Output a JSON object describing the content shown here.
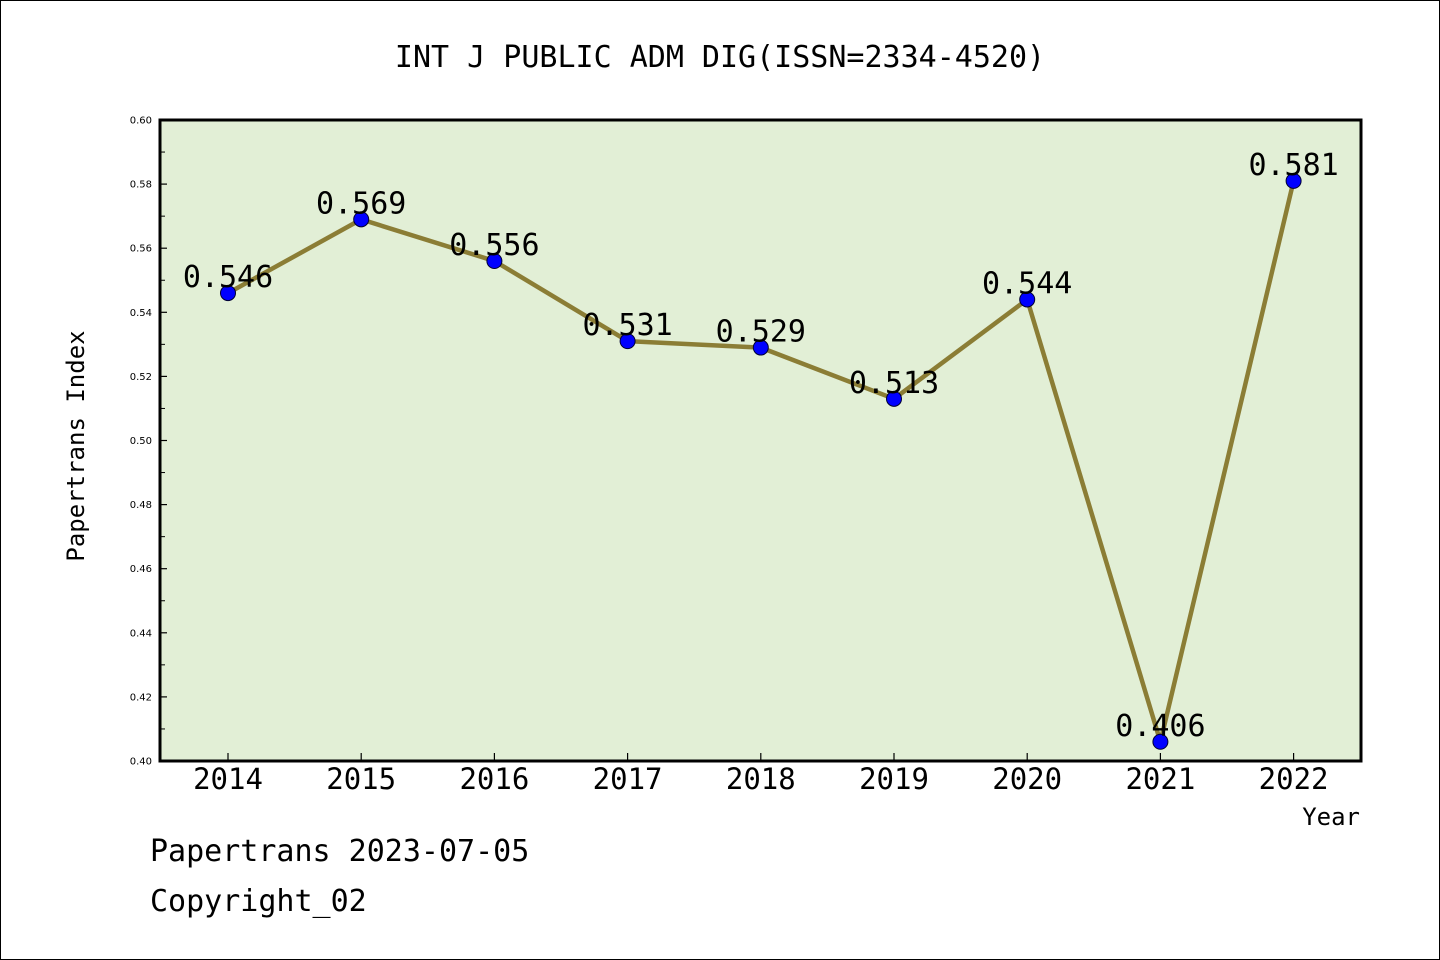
{
  "chart_data": {
    "type": "line",
    "title": "INT J PUBLIC ADM DIG(ISSN=2334-4520)",
    "xlabel": "Year",
    "ylabel": "Papertrans Index",
    "categories": [
      "2014",
      "2015",
      "2016",
      "2017",
      "2018",
      "2019",
      "2020",
      "2021",
      "2022"
    ],
    "series": [
      {
        "values": [
          0.546,
          0.569,
          0.556,
          0.531,
          0.529,
          0.513,
          0.544,
          0.406,
          0.581
        ],
        "labels": [
          "0.546",
          "0.569",
          "0.556",
          "0.531",
          "0.529",
          "0.513",
          "0.544",
          "0.406",
          "0.581"
        ],
        "line_color": "#8b7d35",
        "marker_color": "#0000ff"
      }
    ],
    "ylim": [
      0.4,
      0.6
    ],
    "yticks": [
      "0.40",
      "0.42",
      "0.44",
      "0.46",
      "0.48",
      "0.50",
      "0.52",
      "0.54",
      "0.56",
      "0.58",
      "0.60"
    ],
    "plot_background": "#e2efd6",
    "grid": false,
    "legend": "none"
  },
  "footer": {
    "line1": "Papertrans 2023-07-05",
    "line2": "Copyright_02"
  }
}
